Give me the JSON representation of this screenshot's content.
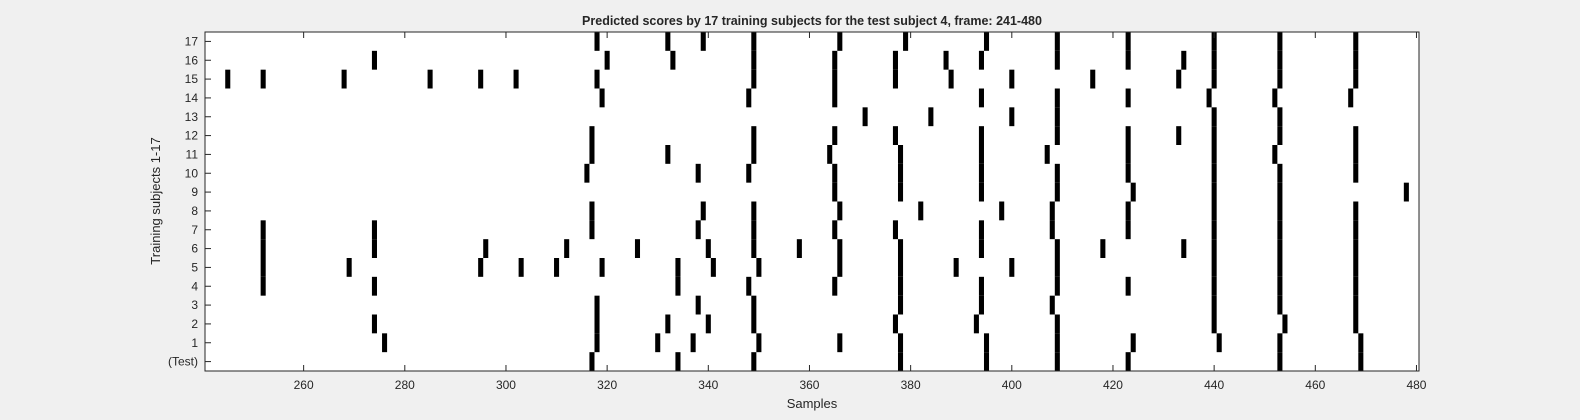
{
  "chart_data": {
    "type": "heatmap",
    "title": "Predicted scores by 17 training subjects for the test subject 4, frame: 241-480",
    "xlabel": "Samples",
    "ylabel": "Training subjects 1-17",
    "xlim": [
      241,
      480
    ],
    "x_ticks": [
      260,
      280,
      300,
      320,
      340,
      360,
      380,
      400,
      420,
      440,
      460,
      480
    ],
    "y_tick_labels": [
      "(Test)",
      "1",
      "2",
      "3",
      "4",
      "5",
      "6",
      "7",
      "8",
      "9",
      "10",
      "11",
      "12",
      "13",
      "14",
      "15",
      "16",
      "17"
    ],
    "grid": false,
    "legend": "none",
    "colors": {
      "mark": "#000000",
      "background": "#ffffff",
      "figure": "#f0f0f0"
    },
    "rows": [
      {
        "label": "(Test)",
        "samples": [
          317,
          334,
          349,
          378,
          395,
          409,
          423,
          453,
          469
        ]
      },
      {
        "label": "1",
        "samples": [
          276,
          318,
          330,
          337,
          350,
          366,
          378,
          395,
          409,
          424,
          441,
          453,
          469
        ]
      },
      {
        "label": "2",
        "samples": [
          274,
          318,
          332,
          340,
          349,
          377,
          393,
          409,
          440,
          454,
          468
        ]
      },
      {
        "label": "3",
        "samples": [
          318,
          338,
          349,
          378,
          394,
          408,
          440,
          453,
          468
        ]
      },
      {
        "label": "4",
        "samples": [
          252,
          274,
          334,
          348,
          365,
          378,
          394,
          409,
          423,
          440,
          453,
          468
        ]
      },
      {
        "label": "5",
        "samples": [
          252,
          269,
          295,
          303,
          310,
          319,
          334,
          341,
          350,
          366,
          378,
          389,
          400,
          409,
          440,
          453,
          468
        ]
      },
      {
        "label": "6",
        "samples": [
          252,
          274,
          296,
          312,
          326,
          340,
          349,
          358,
          366,
          378,
          394,
          409,
          418,
          434,
          440,
          453,
          468
        ]
      },
      {
        "label": "7",
        "samples": [
          252,
          274,
          317,
          338,
          349,
          365,
          377,
          394,
          408,
          423,
          440,
          453,
          468
        ]
      },
      {
        "label": "8",
        "samples": [
          317,
          339,
          349,
          366,
          382,
          398,
          408,
          423,
          440,
          453,
          468
        ]
      },
      {
        "label": "9",
        "samples": [
          365,
          378,
          394,
          409,
          424,
          440,
          453,
          478
        ]
      },
      {
        "label": "10",
        "samples": [
          316,
          338,
          348,
          365,
          378,
          394,
          409,
          423,
          440,
          453,
          468
        ]
      },
      {
        "label": "11",
        "samples": [
          317,
          332,
          349,
          364,
          378,
          394,
          407,
          423,
          440,
          452,
          468
        ]
      },
      {
        "label": "12",
        "samples": [
          317,
          349,
          365,
          377,
          394,
          409,
          423,
          433,
          440,
          453,
          468
        ]
      },
      {
        "label": "13",
        "samples": [
          371,
          384,
          400,
          409,
          440,
          453
        ]
      },
      {
        "label": "14",
        "samples": [
          319,
          348,
          365,
          394,
          409,
          423,
          439,
          452,
          467
        ]
      },
      {
        "label": "15",
        "samples": [
          245,
          252,
          268,
          285,
          295,
          302,
          318,
          349,
          365,
          377,
          388,
          400,
          416,
          433,
          440,
          453,
          468
        ]
      },
      {
        "label": "16",
        "samples": [
          274,
          320,
          333,
          349,
          365,
          377,
          387,
          394,
          409,
          423,
          434,
          440,
          453,
          468
        ]
      },
      {
        "label": "17",
        "samples": [
          318,
          332,
          339,
          349,
          366,
          379,
          395,
          409,
          423,
          440,
          453,
          468
        ]
      }
    ]
  }
}
